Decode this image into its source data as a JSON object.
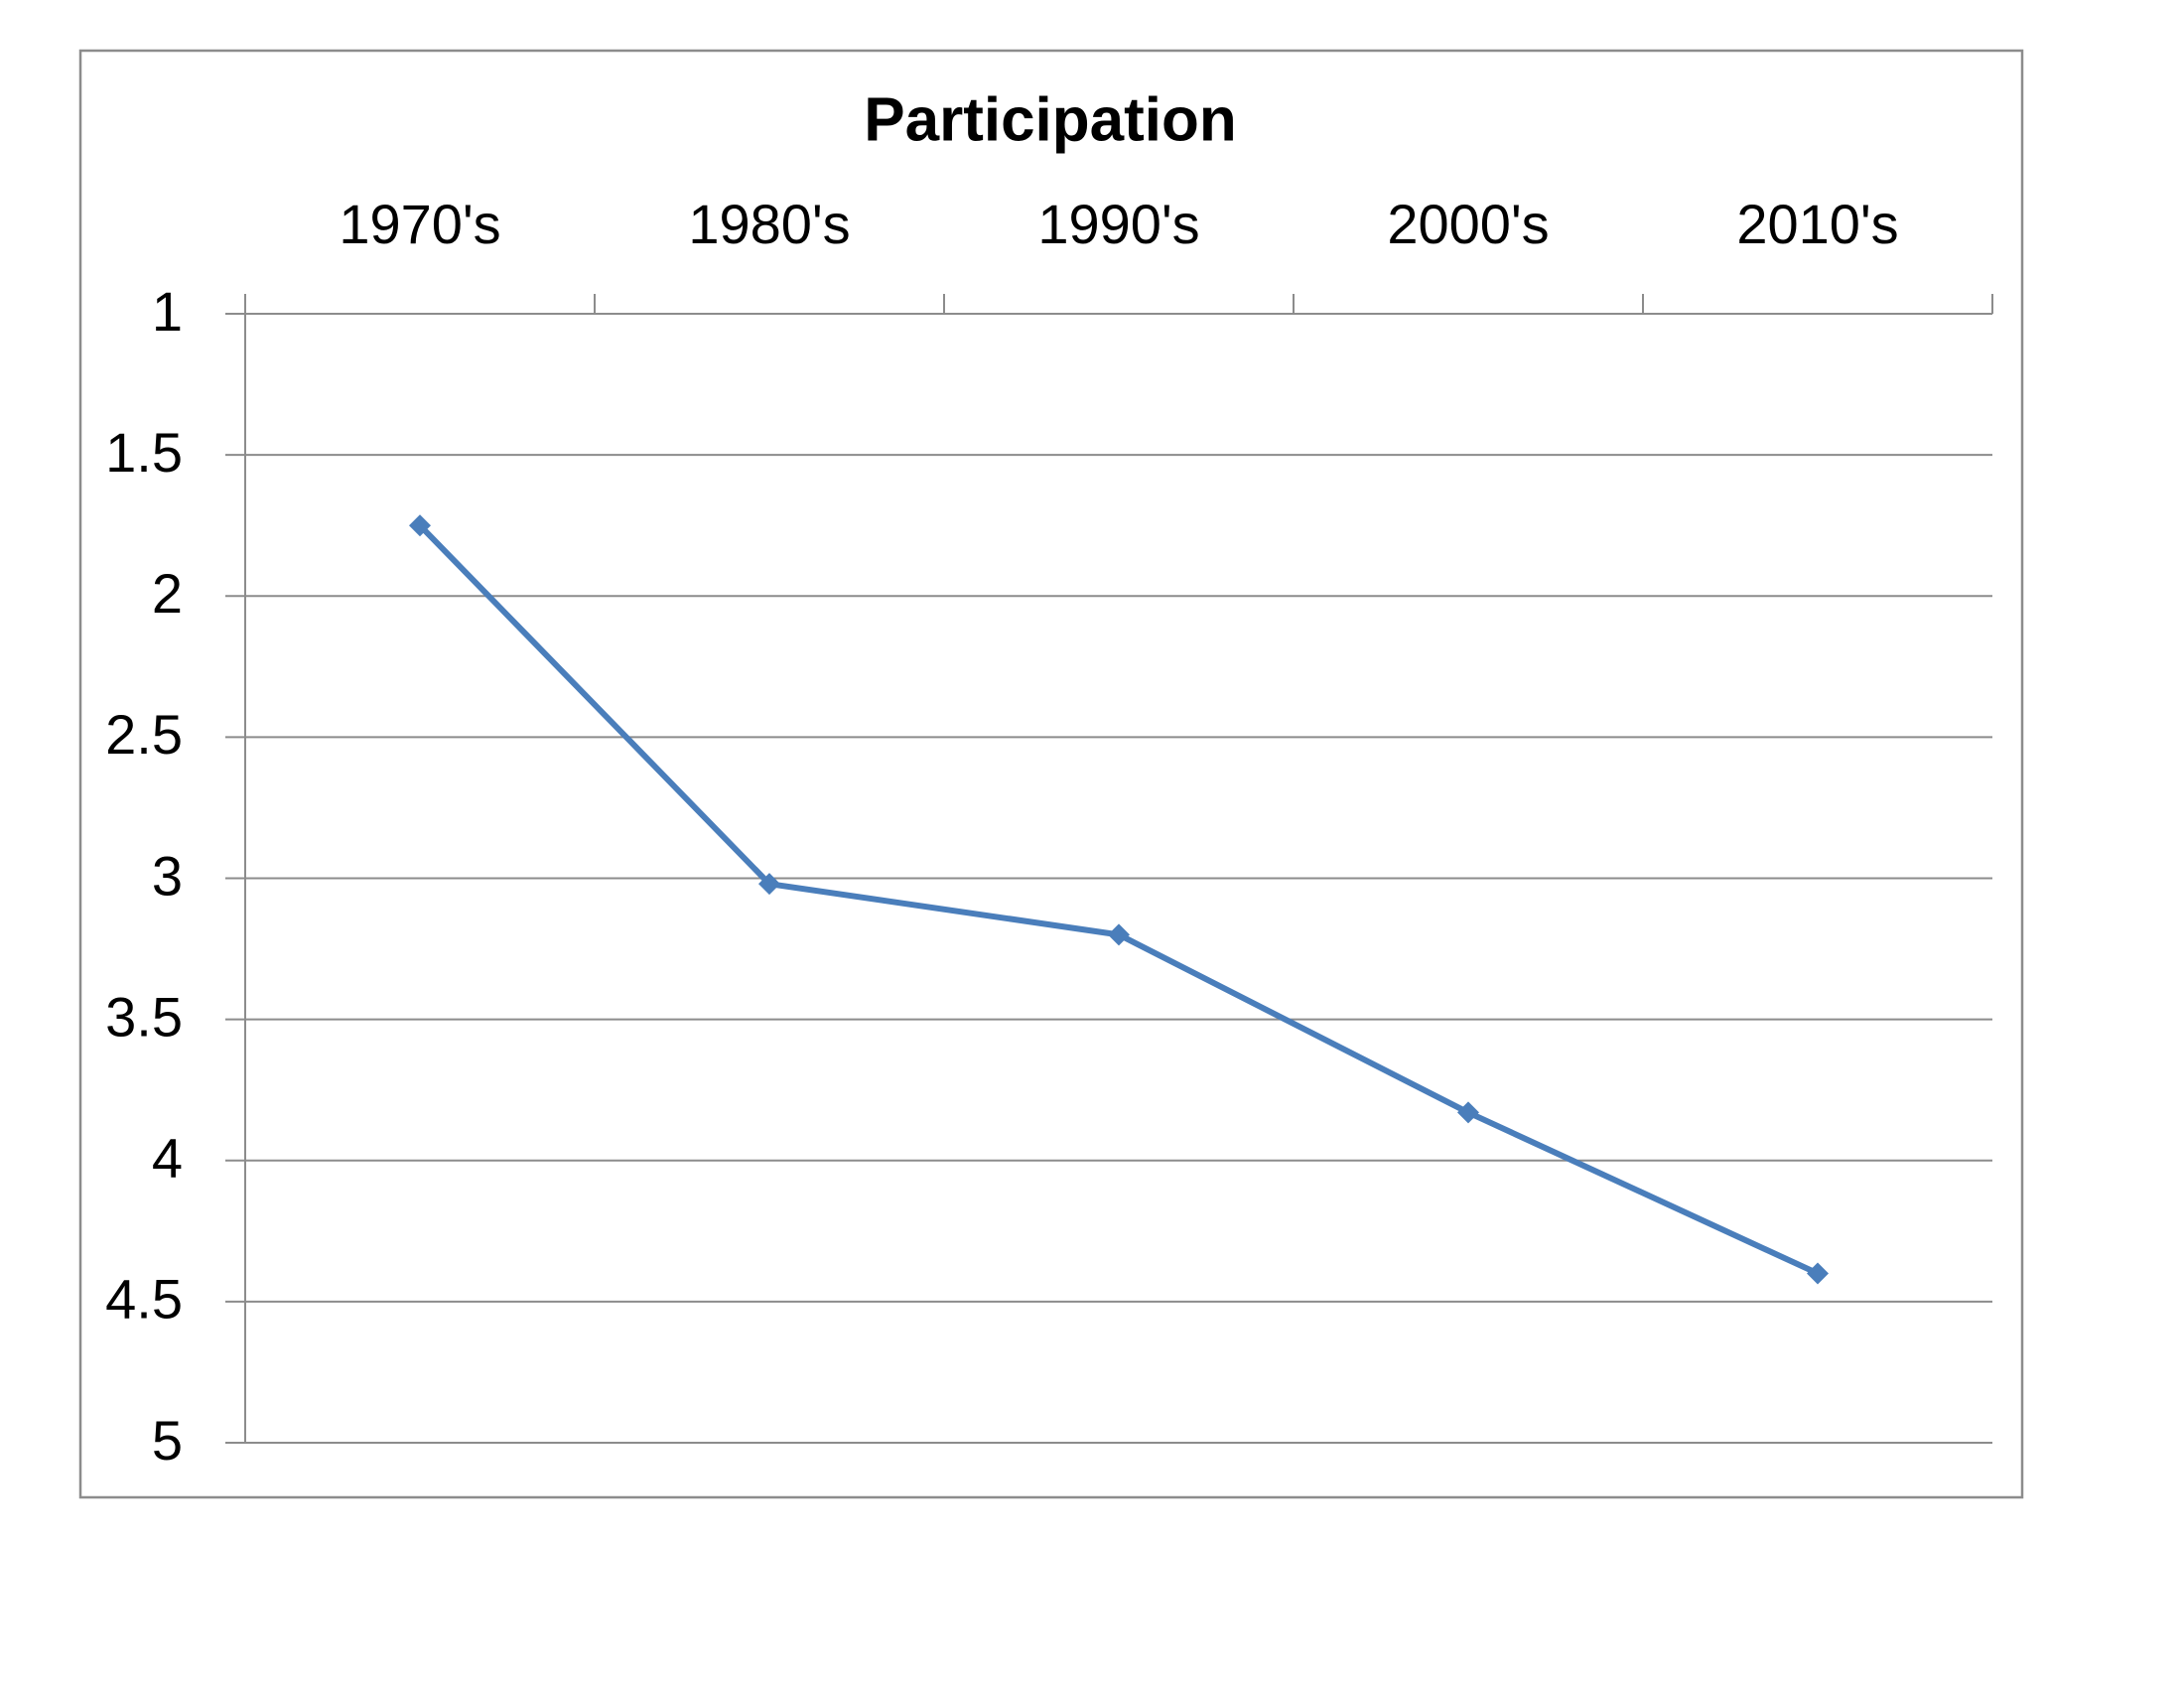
{
  "chart_data": {
    "type": "line",
    "title": "Participation",
    "categories": [
      "1970's",
      "1980's",
      "1990's",
      "2000's",
      "2010's"
    ],
    "values": [
      1.75,
      3.02,
      3.2,
      3.83,
      4.4
    ],
    "color": "#4a7ebb",
    "ylim": [
      1,
      5
    ],
    "yticks": [
      1,
      1.5,
      2,
      2.5,
      3,
      3.5,
      4,
      4.5,
      5
    ],
    "y_reversed": true,
    "x_axis_position": "top",
    "grid": true,
    "marker": "diamond"
  }
}
